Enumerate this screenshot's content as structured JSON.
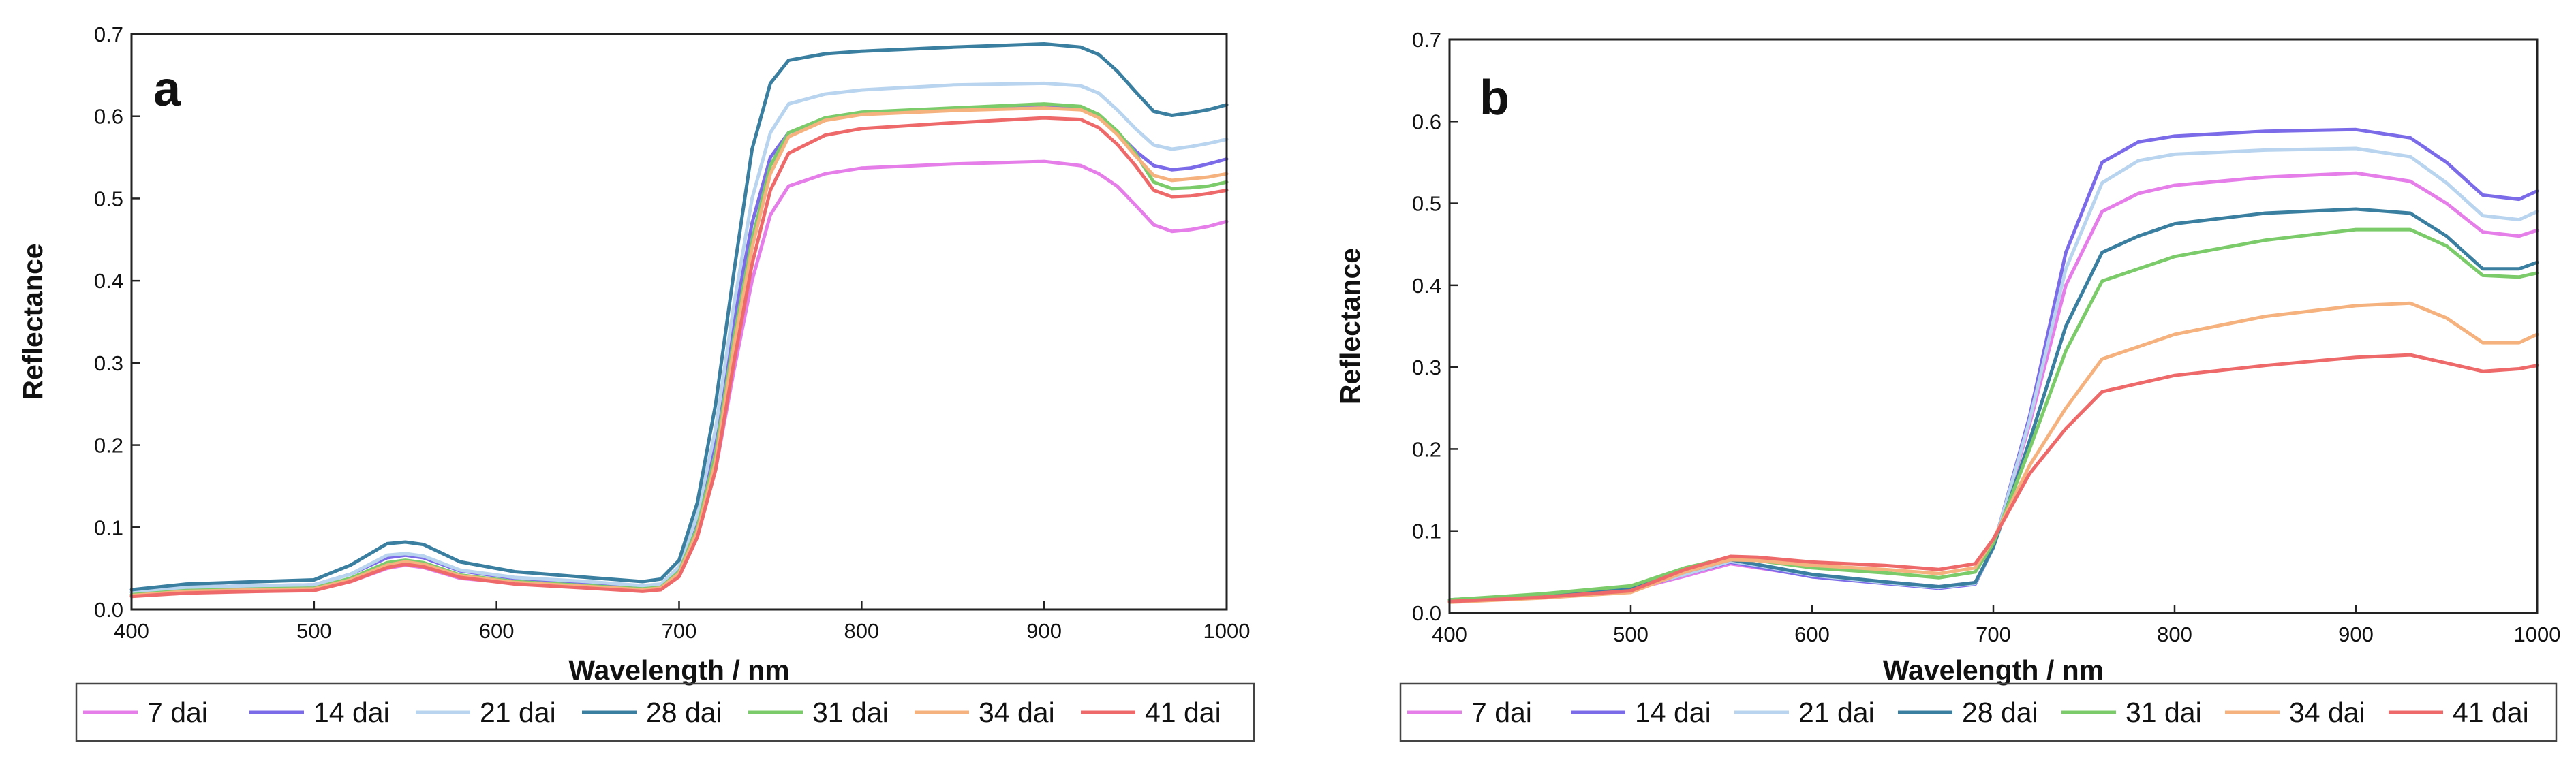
{
  "chart_data": [
    {
      "type": "line",
      "panel_label": "a",
      "xlabel": "Wavelength / nm",
      "ylabel": "Reflectance",
      "xlim": [
        400,
        1000
      ],
      "ylim": [
        0.0,
        0.7
      ],
      "x_ticks": [
        "400",
        "500",
        "600",
        "700",
        "800",
        "900",
        "1000"
      ],
      "y_ticks": [
        "0.0",
        "0.1",
        "0.2",
        "0.3",
        "0.4",
        "0.5",
        "0.6",
        "0.7"
      ],
      "legend_position": "bottom",
      "x": [
        400,
        430,
        470,
        500,
        520,
        540,
        550,
        560,
        580,
        610,
        650,
        680,
        690,
        700,
        710,
        720,
        730,
        740,
        750,
        760,
        780,
        800,
        850,
        900,
        920,
        930,
        940,
        950,
        960,
        970,
        980,
        990,
        1000
      ],
      "series": [
        {
          "name": "7 dai",
          "color": "#e57ee8",
          "values": [
            0.017,
            0.021,
            0.022,
            0.024,
            0.034,
            0.05,
            0.054,
            0.051,
            0.038,
            0.032,
            0.027,
            0.023,
            0.025,
            0.042,
            0.09,
            0.17,
            0.29,
            0.4,
            0.48,
            0.515,
            0.53,
            0.537,
            0.542,
            0.545,
            0.54,
            0.53,
            0.515,
            0.492,
            0.468,
            0.46,
            0.462,
            0.466,
            0.472
          ]
        },
        {
          "name": "14 dai",
          "color": "#7b6be8",
          "values": [
            0.021,
            0.027,
            0.029,
            0.03,
            0.043,
            0.063,
            0.066,
            0.063,
            0.047,
            0.038,
            0.033,
            0.028,
            0.03,
            0.05,
            0.11,
            0.21,
            0.35,
            0.47,
            0.55,
            0.58,
            0.597,
            0.603,
            0.608,
            0.612,
            0.61,
            0.6,
            0.58,
            0.558,
            0.54,
            0.535,
            0.537,
            0.542,
            0.548
          ]
        },
        {
          "name": "21 dai",
          "color": "#b8d4ee",
          "values": [
            0.021,
            0.027,
            0.029,
            0.03,
            0.043,
            0.066,
            0.068,
            0.065,
            0.048,
            0.039,
            0.034,
            0.029,
            0.031,
            0.052,
            0.115,
            0.22,
            0.37,
            0.5,
            0.58,
            0.615,
            0.627,
            0.632,
            0.638,
            0.64,
            0.637,
            0.628,
            0.608,
            0.585,
            0.565,
            0.56,
            0.563,
            0.567,
            0.572
          ]
        },
        {
          "name": "28 dai",
          "color": "#3b7fa0",
          "values": [
            0.024,
            0.031,
            0.034,
            0.036,
            0.054,
            0.08,
            0.082,
            0.079,
            0.058,
            0.046,
            0.039,
            0.034,
            0.037,
            0.06,
            0.13,
            0.25,
            0.41,
            0.56,
            0.64,
            0.668,
            0.676,
            0.679,
            0.684,
            0.688,
            0.684,
            0.675,
            0.655,
            0.63,
            0.606,
            0.601,
            0.604,
            0.608,
            0.614
          ]
        },
        {
          "name": "31 dai",
          "color": "#7ccb6a",
          "values": [
            0.018,
            0.023,
            0.025,
            0.026,
            0.038,
            0.057,
            0.06,
            0.057,
            0.042,
            0.034,
            0.029,
            0.025,
            0.027,
            0.046,
            0.1,
            0.19,
            0.33,
            0.45,
            0.54,
            0.58,
            0.598,
            0.605,
            0.61,
            0.615,
            0.612,
            0.602,
            0.582,
            0.555,
            0.52,
            0.512,
            0.513,
            0.515,
            0.52
          ]
        },
        {
          "name": "34 dai",
          "color": "#f5b27e",
          "values": [
            0.017,
            0.022,
            0.024,
            0.025,
            0.036,
            0.054,
            0.058,
            0.055,
            0.041,
            0.033,
            0.028,
            0.024,
            0.026,
            0.044,
            0.095,
            0.18,
            0.32,
            0.44,
            0.53,
            0.575,
            0.595,
            0.602,
            0.607,
            0.61,
            0.608,
            0.598,
            0.578,
            0.552,
            0.528,
            0.522,
            0.524,
            0.526,
            0.53
          ]
        },
        {
          "name": "41 dai",
          "color": "#ee6a6a",
          "values": [
            0.016,
            0.02,
            0.022,
            0.023,
            0.034,
            0.051,
            0.055,
            0.052,
            0.039,
            0.031,
            0.026,
            0.022,
            0.024,
            0.04,
            0.088,
            0.17,
            0.3,
            0.42,
            0.51,
            0.555,
            0.577,
            0.585,
            0.592,
            0.598,
            0.596,
            0.586,
            0.566,
            0.54,
            0.51,
            0.502,
            0.503,
            0.506,
            0.51
          ]
        }
      ]
    },
    {
      "type": "line",
      "panel_label": "b",
      "xlabel": "Wavelength / nm",
      "ylabel": "Reflectance",
      "xlim": [
        400,
        1000
      ],
      "ylim": [
        0.0,
        0.7
      ],
      "x_ticks": [
        "400",
        "500",
        "600",
        "700",
        "800",
        "900",
        "1000"
      ],
      "y_ticks": [
        "0.0",
        "0.1",
        "0.2",
        "0.3",
        "0.4",
        "0.5",
        "0.6",
        "0.7"
      ],
      "legend_position": "bottom",
      "x": [
        400,
        450,
        500,
        530,
        555,
        570,
        600,
        640,
        670,
        690,
        700,
        720,
        740,
        760,
        780,
        800,
        850,
        900,
        930,
        950,
        970,
        990,
        1000
      ],
      "series": [
        {
          "name": "7 dai",
          "color": "#e57ee8",
          "values": [
            0.014,
            0.02,
            0.028,
            0.045,
            0.06,
            0.055,
            0.045,
            0.038,
            0.032,
            0.037,
            0.08,
            0.23,
            0.4,
            0.49,
            0.512,
            0.522,
            0.532,
            0.537,
            0.527,
            0.5,
            0.465,
            0.46,
            0.467
          ]
        },
        {
          "name": "14 dai",
          "color": "#7b6be8",
          "values": [
            0.015,
            0.021,
            0.028,
            0.047,
            0.062,
            0.056,
            0.044,
            0.036,
            0.03,
            0.035,
            0.08,
            0.24,
            0.44,
            0.55,
            0.575,
            0.582,
            0.588,
            0.59,
            0.58,
            0.55,
            0.51,
            0.505,
            0.515
          ]
        },
        {
          "name": "21 dai",
          "color": "#b8d4ee",
          "values": [
            0.015,
            0.021,
            0.029,
            0.047,
            0.063,
            0.058,
            0.046,
            0.037,
            0.031,
            0.036,
            0.08,
            0.235,
            0.42,
            0.525,
            0.552,
            0.56,
            0.565,
            0.567,
            0.557,
            0.525,
            0.485,
            0.48,
            0.49
          ]
        },
        {
          "name": "28 dai",
          "color": "#3b7fa0",
          "values": [
            0.016,
            0.022,
            0.031,
            0.05,
            0.065,
            0.059,
            0.047,
            0.038,
            0.032,
            0.037,
            0.08,
            0.21,
            0.35,
            0.44,
            0.46,
            0.475,
            0.488,
            0.493,
            0.488,
            0.46,
            0.42,
            0.42,
            0.428
          ]
        },
        {
          "name": "31 dai",
          "color": "#7ccb6a",
          "values": [
            0.016,
            0.023,
            0.033,
            0.055,
            0.068,
            0.064,
            0.055,
            0.049,
            0.043,
            0.05,
            0.085,
            0.2,
            0.32,
            0.405,
            0.42,
            0.435,
            0.455,
            0.468,
            0.468,
            0.448,
            0.412,
            0.41,
            0.415
          ]
        },
        {
          "name": "34 dai",
          "color": "#f5b27e",
          "values": [
            0.013,
            0.018,
            0.025,
            0.05,
            0.065,
            0.064,
            0.058,
            0.053,
            0.048,
            0.055,
            0.09,
            0.18,
            0.25,
            0.31,
            0.325,
            0.34,
            0.362,
            0.375,
            0.378,
            0.36,
            0.33,
            0.33,
            0.34
          ]
        },
        {
          "name": "41 dai",
          "color": "#ee6a6a",
          "values": [
            0.014,
            0.019,
            0.027,
            0.053,
            0.069,
            0.068,
            0.062,
            0.058,
            0.053,
            0.06,
            0.09,
            0.17,
            0.225,
            0.27,
            0.28,
            0.29,
            0.302,
            0.312,
            0.315,
            0.305,
            0.295,
            0.298,
            0.302
          ]
        }
      ]
    }
  ]
}
